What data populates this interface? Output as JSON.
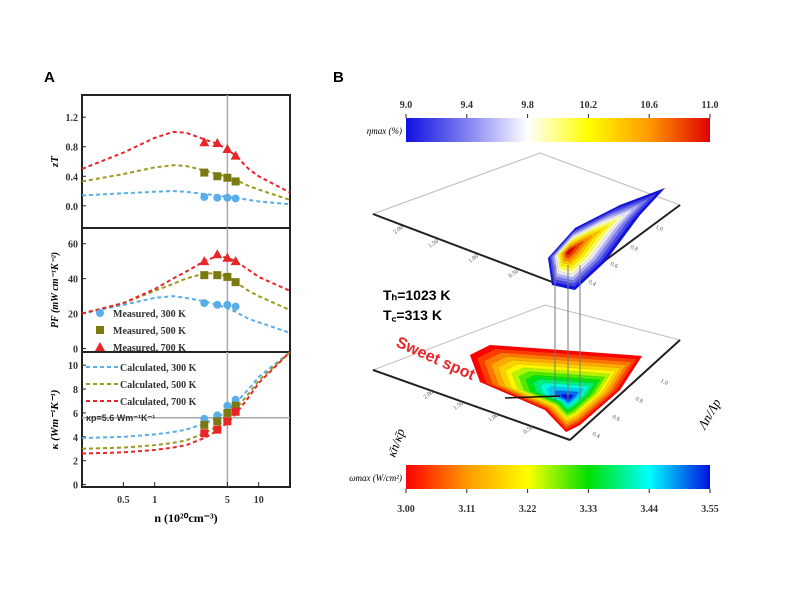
{
  "chart_data": [
    {
      "panel": "A",
      "type": "line",
      "xlabel": "n (10²⁰cm⁻³)",
      "xscale": "log",
      "xlim": [
        0.2,
        20
      ],
      "xticks": [
        0.5,
        1,
        5,
        10
      ],
      "xtick_labels": [
        "0.5",
        "1",
        "5",
        "10"
      ],
      "vertical_reference_x": 5,
      "subplots": [
        {
          "ylabel": "zT",
          "ylim": [
            -0.3,
            1.5
          ],
          "yticks": [
            0,
            0.4,
            0.8,
            1.2
          ],
          "ytick_labels": [
            "0.0",
            "0.4",
            "0.8",
            "1.2"
          ],
          "curve_x": [
            0.2,
            0.5,
            1,
            1.5,
            2,
            3,
            4,
            5,
            6,
            8,
            10,
            20
          ],
          "curves": [
            {
              "color": "#5aaee8",
              "y": [
                0.14,
                0.17,
                0.19,
                0.2,
                0.19,
                0.16,
                0.14,
                0.12,
                0.11,
                0.08,
                0.06,
                0.02
              ]
            },
            {
              "color": "#9a9a20",
              "y": [
                0.33,
                0.43,
                0.52,
                0.55,
                0.54,
                0.48,
                0.43,
                0.39,
                0.35,
                0.27,
                0.22,
                0.08
              ]
            },
            {
              "color": "#e8262a",
              "y": [
                0.5,
                0.72,
                0.92,
                1.0,
                0.99,
                0.9,
                0.84,
                0.76,
                0.68,
                0.5,
                0.4,
                0.18
              ]
            }
          ],
          "points_x": [
            3,
            4,
            5,
            6
          ],
          "points": [
            {
              "color": "#5aaee8",
              "marker": "circle",
              "y": [
                0.12,
                0.11,
                0.11,
                0.1
              ]
            },
            {
              "color": "#7a7a10",
              "marker": "square",
              "y": [
                0.45,
                0.4,
                0.38,
                0.33
              ]
            },
            {
              "color": "#e8262a",
              "marker": "triangle",
              "y": [
                0.86,
                0.85,
                0.77,
                0.68
              ]
            }
          ]
        },
        {
          "ylabel": "PF (mW cm⁻¹K⁻²)",
          "ylim": [
            -2,
            69
          ],
          "yticks": [
            0,
            20,
            40,
            60
          ],
          "ytick_labels": [
            "0",
            "20",
            "40",
            "60"
          ],
          "curve_x": [
            0.2,
            0.5,
            1,
            1.5,
            2,
            3,
            4,
            5,
            6,
            8,
            10,
            20
          ],
          "curves": [
            {
              "color": "#5aaee8",
              "y": [
                20,
                25,
                29,
                30,
                29,
                27,
                25,
                23,
                21,
                17,
                15,
                9
              ]
            },
            {
              "color": "#9a9a20",
              "y": [
                20,
                26,
                33,
                37,
                40,
                43,
                43,
                41,
                38,
                33,
                30,
                22
              ]
            },
            {
              "color": "#e8262a",
              "y": [
                20,
                26,
                34,
                40,
                44,
                50,
                53,
                52,
                50,
                45,
                41,
                33
              ]
            }
          ],
          "points_x": [
            3,
            4,
            5,
            6
          ],
          "points": [
            {
              "color": "#5aaee8",
              "marker": "circle",
              "y": [
                26,
                25,
                25,
                24
              ]
            },
            {
              "color": "#7a7a10",
              "marker": "square",
              "y": [
                42,
                42,
                41,
                38
              ]
            },
            {
              "color": "#e8262a",
              "marker": "triangle",
              "y": [
                50,
                54,
                52,
                50
              ]
            }
          ],
          "legend": [
            {
              "label": "Measured, 300 K",
              "color": "#5aaee8",
              "marker": "circle"
            },
            {
              "label": "Measured, 500 K",
              "color": "#7a7a10",
              "marker": "square"
            },
            {
              "label": "Measured, 700 K",
              "color": "#e8262a",
              "marker": "triangle"
            }
          ]
        },
        {
          "ylabel": "κ (Wm⁻¹K⁻¹)",
          "ylim": [
            -0.2,
            11.1
          ],
          "yticks": [
            0,
            2,
            4,
            6,
            8,
            10
          ],
          "ytick_labels": [
            "0",
            "2",
            "4",
            "6",
            "8",
            "10"
          ],
          "horizontal_reference_y": 5.6,
          "annotation": "κp=5.6 Wm⁻¹K⁻¹",
          "curve_x": [
            0.2,
            0.5,
            1,
            1.5,
            2,
            3,
            4,
            5,
            6,
            8,
            10,
            20
          ],
          "curves": [
            {
              "color": "#5aaee8",
              "y": [
                3.9,
                4.0,
                4.2,
                4.4,
                4.6,
                5.1,
                5.6,
                6.2,
                6.8,
                8.0,
                9.0,
                11.2
              ]
            },
            {
              "color": "#9a9a20",
              "y": [
                3.0,
                3.1,
                3.3,
                3.5,
                3.7,
                4.3,
                4.9,
                5.6,
                6.3,
                7.6,
                8.7,
                11.2
              ]
            },
            {
              "color": "#e8262a",
              "y": [
                2.6,
                2.7,
                2.9,
                3.1,
                3.3,
                3.9,
                4.5,
                5.2,
                5.9,
                7.3,
                8.5,
                11.2
              ]
            }
          ],
          "points_x": [
            3,
            4,
            5,
            6
          ],
          "points": [
            {
              "color": "#5aaee8",
              "marker": "circle",
              "y": [
                5.5,
                5.8,
                6.6,
                7.1
              ]
            },
            {
              "color": "#7a7a10",
              "marker": "square",
              "y": [
                5.0,
                5.3,
                6.0,
                6.6
              ]
            },
            {
              "color": "#e8262a",
              "marker": "square",
              "y": [
                4.3,
                4.6,
                5.3,
                6.1
              ]
            }
          ],
          "legend": [
            {
              "label": "Calculated, 300 K",
              "color": "#5aaee8"
            },
            {
              "label": "Calculated, 500 K",
              "color": "#9a9a20"
            },
            {
              "label": "Calculated, 700 K",
              "color": "#e8262a"
            }
          ]
        }
      ]
    },
    {
      "panel": "B",
      "type": "heatmap",
      "style": "3D contour planes",
      "conditions": [
        "Tₕ=1023 K",
        "T꜀=313 K"
      ],
      "annotation": "Sweet spot",
      "x_axis_label": "κ̄n/κ̄p",
      "y_axis_label": "Λn/Λp",
      "left_axis_ticks": [
        "2.00",
        "1.50",
        "1.00",
        "0.50"
      ],
      "right_axis_ticks": [
        "0.4",
        "0.6",
        "0.8",
        "1.0"
      ],
      "colorbars": [
        {
          "label": "ηmax (%)",
          "ticks": [
            "9.0",
            "9.4",
            "9.8",
            "10.2",
            "10.6",
            "11.0"
          ],
          "range": [
            9.0,
            11.0
          ],
          "colors": [
            "#1010e0",
            "#8080f0",
            "#ffffff",
            "#ffff00",
            "#ff9900",
            "#e00000"
          ]
        },
        {
          "label": "ωmax (W/cm²)",
          "ticks": [
            "3.00",
            "3.11",
            "3.22",
            "3.33",
            "3.44",
            "3.55"
          ],
          "range": [
            3.0,
            3.55
          ],
          "colors": [
            "#ff0000",
            "#ff9900",
            "#ffff00",
            "#00e000",
            "#00ffff",
            "#0010e0"
          ]
        }
      ]
    }
  ],
  "labels": {
    "panel_a": "A",
    "panel_b": "B"
  }
}
